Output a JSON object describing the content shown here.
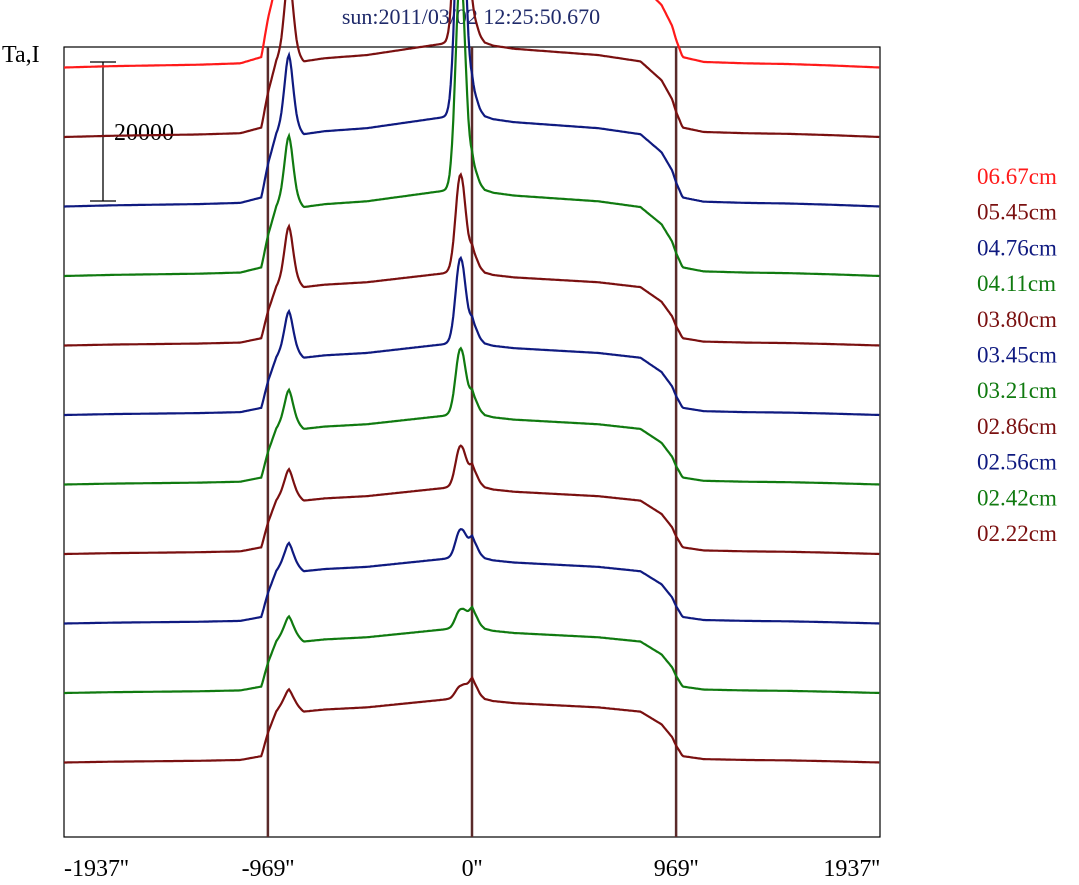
{
  "chart_data": {
    "type": "line",
    "title": "sun:2011/03/02 12:25:50.670",
    "ylabel": "Ta,I",
    "xlabel": "",
    "xlim": [
      -1937,
      1937
    ],
    "x_ticks": [
      {
        "value": -1937,
        "label": "-1937''"
      },
      {
        "value": -969,
        "label": "-969''"
      },
      {
        "value": 0,
        "label": "0''"
      },
      {
        "value": 969,
        "label": "969''"
      },
      {
        "value": 1937,
        "label": "1937''"
      }
    ],
    "vertical_markers": [
      -969,
      0,
      969
    ],
    "scale_bar": {
      "value": 20000,
      "label": "20000"
    },
    "grid": false,
    "legend_position": "right",
    "colors": {
      "marker_line": "#5a2a2a",
      "axis": "#000000",
      "title": "#1f2a6a"
    },
    "profile_shape": {
      "x": [
        -1937,
        -1700,
        -1300,
        -1100,
        -1000,
        -969,
        -930,
        -870,
        -820,
        -800,
        -700,
        -500,
        -300,
        -200,
        -100,
        -50,
        -20,
        0,
        20,
        40,
        60,
        100,
        200,
        400,
        600,
        800,
        900,
        950,
        969,
        1000,
        1100,
        1300,
        1500,
        1700,
        1937
      ],
      "y": [
        0,
        200,
        400,
        600,
        1500,
        7000,
        12000,
        16000,
        13000,
        12000,
        12500,
        13000,
        14000,
        14500,
        15000,
        16000,
        18000,
        20000,
        18000,
        16000,
        15000,
        14500,
        14000,
        13500,
        13000,
        12000,
        9000,
        6000,
        4000,
        1500,
        800,
        600,
        500,
        300,
        0
      ]
    },
    "series": [
      {
        "name": "06.67cm",
        "color": "#ff1a1a",
        "offset": 110000,
        "peak": 60000,
        "limb_bump": 6000
      },
      {
        "name": "05.45cm",
        "color": "#7a1010",
        "offset": 100000,
        "peak": 46000,
        "limb_bump": 4500
      },
      {
        "name": "04.76cm",
        "color": "#0f1a80",
        "offset": 90000,
        "peak": 40000,
        "limb_bump": 4000
      },
      {
        "name": "04.11cm",
        "color": "#107a10",
        "offset": 80000,
        "peak": 34000,
        "limb_bump": 3500
      },
      {
        "name": "03.80cm",
        "color": "#7a1010",
        "offset": 70000,
        "peak": 15000,
        "limb_bump": 3000
      },
      {
        "name": "03.45cm",
        "color": "#0f1a80",
        "offset": 60000,
        "peak": 13000,
        "limb_bump": 2000
      },
      {
        "name": "03.21cm",
        "color": "#107a10",
        "offset": 50000,
        "peak": 10000,
        "limb_bump": 1500
      },
      {
        "name": "02.86cm",
        "color": "#7a1010",
        "offset": 40000,
        "peak": 6000,
        "limb_bump": 1000
      },
      {
        "name": "02.56cm",
        "color": "#0f1a80",
        "offset": 30000,
        "peak": 4000,
        "limb_bump": 800
      },
      {
        "name": "02.42cm",
        "color": "#107a10",
        "offset": 20000,
        "peak": 2500,
        "limb_bump": 600
      },
      {
        "name": "02.22cm",
        "color": "#7a1010",
        "offset": 10000,
        "peak": 1500,
        "limb_bump": 400
      }
    ]
  }
}
